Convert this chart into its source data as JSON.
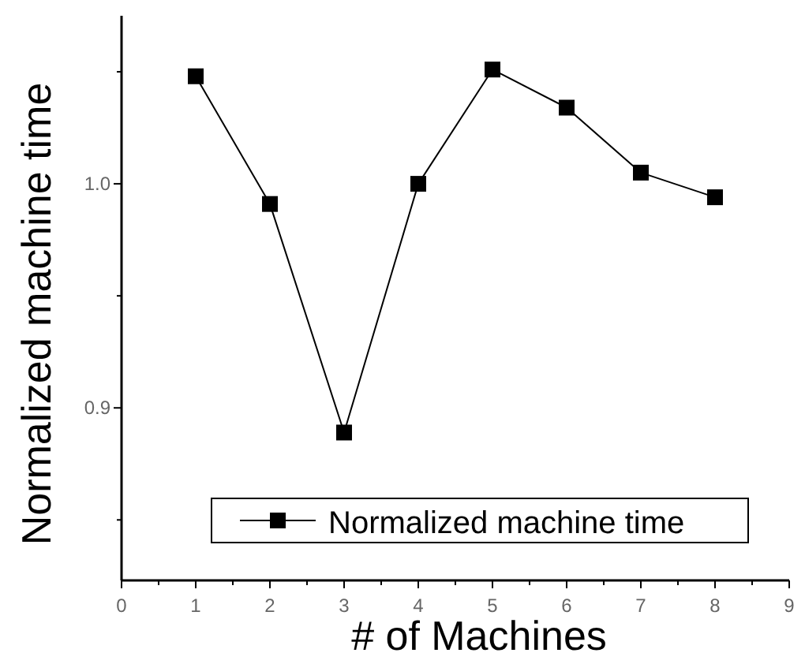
{
  "chart_data": {
    "type": "line",
    "xlabel": "# of Machines",
    "ylabel": "Normalized machine time",
    "x": [
      1,
      2,
      3,
      4,
      5,
      6,
      7,
      8
    ],
    "series": [
      {
        "name": "Normalized machine time",
        "color": "#000000",
        "values": [
          1.048,
          0.991,
          0.889,
          1.0,
          1.051,
          1.034,
          1.005,
          0.994
        ]
      }
    ],
    "xlim": [
      0,
      9
    ],
    "xticks": [
      0,
      {
        "value": 0.5,
        "label": null
      },
      1,
      {
        "value": 1.5,
        "label": null
      },
      2,
      {
        "value": 2.5,
        "label": null
      },
      3,
      {
        "value": 3.5,
        "label": null
      },
      4,
      {
        "value": 4.5,
        "label": null
      },
      5,
      {
        "value": 5.5,
        "label": null
      },
      6,
      {
        "value": 6.5,
        "label": null
      },
      7,
      {
        "value": 7.5,
        "label": null
      },
      8,
      {
        "value": 8.5,
        "label": null
      },
      9
    ],
    "ylim": [
      0.823,
      1.075
    ],
    "yticks": [
      {
        "value": 0.85,
        "label": null
      },
      {
        "value": 0.9,
        "label": "0.9"
      },
      {
        "value": 0.95,
        "label": null
      },
      {
        "value": 1.0,
        "label": "1.0"
      },
      {
        "value": 1.05,
        "label": null
      }
    ],
    "marker": "square",
    "line_style": "solid",
    "legend": "bottom",
    "grid": false
  }
}
